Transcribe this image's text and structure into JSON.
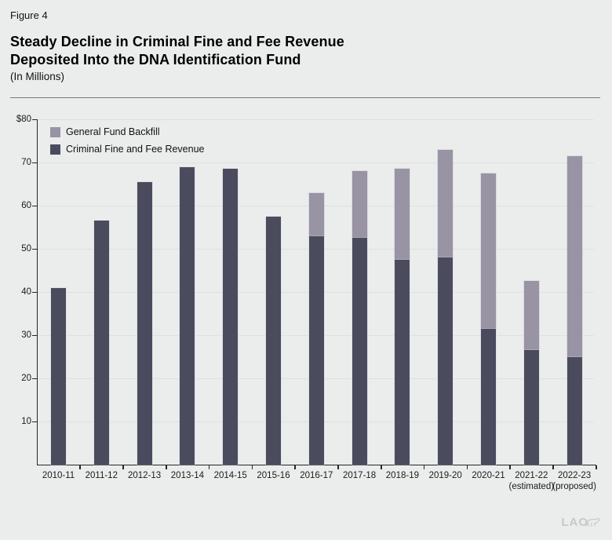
{
  "figure": {
    "label": "Figure 4",
    "title_line1": "Steady Decline in Criminal Fine and Fee Revenue",
    "title_line2": "Deposited Into the DNA Identification Fund",
    "subtitle": "(In Millions)"
  },
  "legend": [
    {
      "name": "General Fund Backfill",
      "color": "#9894a3"
    },
    {
      "name": "Criminal Fine and Fee Revenue",
      "color": "#4a4c5e"
    }
  ],
  "logo": {
    "text": "LAO"
  },
  "colors": {
    "background": "#ebedec",
    "gridline": "#dfe1e0",
    "axis": "#25252e",
    "backfill": "#9894a3",
    "revenue": "#4a4c5e"
  },
  "chart_data": {
    "type": "bar",
    "stacked": true,
    "title": "Steady Decline in Criminal Fine and Fee Revenue Deposited Into the DNA Identification Fund",
    "units": "In Millions",
    "categories": [
      "2010-11",
      "2011-12",
      "2012-13",
      "2013-14",
      "2014-15",
      "2015-16",
      "2016-17",
      "2017-18",
      "2018-19",
      "2019-20",
      "2020-21",
      "2021-22",
      "2022-23"
    ],
    "category_sublabels": [
      "",
      "",
      "",
      "",
      "",
      "",
      "",
      "",
      "",
      "",
      "",
      "(estimated)",
      "(proposed)"
    ],
    "series": [
      {
        "name": "Criminal Fine and Fee Revenue",
        "color": "#4a4c5e",
        "values": [
          41,
          56.5,
          65.5,
          69,
          68.5,
          57.5,
          53,
          52.5,
          47.5,
          48,
          31.5,
          26.5,
          25
        ]
      },
      {
        "name": "General Fund Backfill",
        "color": "#9894a3",
        "values": [
          0,
          0,
          0,
          0,
          0,
          0,
          10,
          15.5,
          21,
          25,
          36,
          16,
          46.5
        ]
      }
    ],
    "totals": [
      41,
      56.5,
      65.5,
      69,
      68.5,
      57.5,
      63,
      68,
      68.5,
      73,
      67.5,
      42.5,
      71.5
    ],
    "ylim": [
      0,
      80
    ],
    "yticks": [
      {
        "label": "$80",
        "value": 80
      },
      {
        "label": "70",
        "value": 70
      },
      {
        "label": "60",
        "value": 60
      },
      {
        "label": "50",
        "value": 50
      },
      {
        "label": "40",
        "value": 40
      },
      {
        "label": "30",
        "value": 30
      },
      {
        "label": "20",
        "value": 20
      },
      {
        "label": "10",
        "value": 10
      }
    ],
    "grid": true,
    "legend_position": "top-left-inside"
  }
}
